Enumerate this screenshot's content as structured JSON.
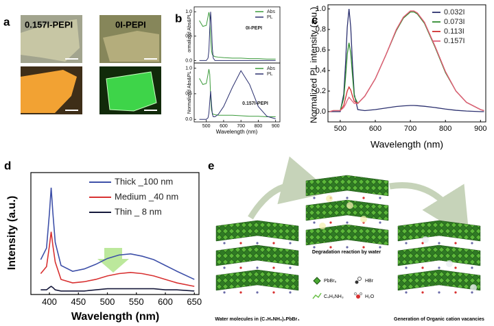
{
  "panel_labels": [
    "a",
    "b",
    "c",
    "d",
    "e"
  ],
  "images": {
    "labels": [
      "0.157I-PEPI",
      "0I-PEPI"
    ]
  },
  "chart_data": [
    {
      "type": "line",
      "ylabel": "ormalized Abs&PL",
      "annotation": "0I-PEPI",
      "x": [
        460,
        480,
        500,
        510,
        515,
        520,
        525,
        530,
        535,
        540,
        550,
        570,
        600,
        650,
        700,
        750,
        800,
        850,
        900
      ],
      "series": [
        {
          "name": "Abs",
          "color": "#3a9a3a",
          "values": [
            0.82,
            0.7,
            0.72,
            0.9,
            0.99,
            0.9,
            0.5,
            0.2,
            0.12,
            0.1,
            0.08,
            0.07,
            0.06,
            0.05,
            0.05,
            0.04,
            0.04,
            0.03,
            0.03
          ]
        },
        {
          "name": "PL",
          "color": "#2a2f6e",
          "values": [
            0,
            0,
            0,
            0.05,
            0.2,
            0.65,
            1.0,
            0.7,
            0.25,
            0.05,
            0,
            0,
            0,
            0,
            0,
            0,
            0,
            0,
            0
          ]
        }
      ],
      "xlim": [
        430,
        925
      ],
      "ylim": [
        -0.05,
        1.1
      ],
      "yticks": [
        {
          "value": 0,
          "label": "0.0"
        },
        0.5,
        {
          "value": 1,
          "label": "1.0"
        }
      ]
    },
    {
      "type": "line",
      "xlabel": "Wavelength (nm)",
      "ylabel": "Normalized Abs&PL",
      "annotation": "0.157I-PEPI",
      "x": [
        460,
        480,
        500,
        510,
        515,
        520,
        525,
        530,
        535,
        540,
        550,
        570,
        600,
        650,
        700,
        750,
        800,
        850,
        900
      ],
      "series": [
        {
          "name": "Abs",
          "color": "#3a9a3a",
          "values": [
            0.8,
            0.68,
            0.7,
            0.88,
            0.98,
            0.88,
            0.45,
            0.18,
            0.12,
            0.1,
            0.09,
            0.08,
            0.08,
            0.08,
            0.07,
            0.06,
            0.06,
            0.05,
            0.05
          ]
        },
        {
          "name": "PL",
          "color": "#2a2f6e",
          "values": [
            0,
            0,
            0,
            0.03,
            0.12,
            0.35,
            0.55,
            0.3,
            0.1,
            0.05,
            0.05,
            0.1,
            0.25,
            0.62,
            0.95,
            0.68,
            0.25,
            0.06,
            0.01
          ]
        }
      ],
      "xlim": [
        430,
        925
      ],
      "ylim": [
        -0.05,
        1.1
      ],
      "xticks": [
        500,
        600,
        700,
        800,
        900
      ],
      "yticks": [
        {
          "value": 0,
          "label": "0.0"
        },
        0.5,
        {
          "value": 1,
          "label": "1.0"
        }
      ]
    },
    {
      "type": "line",
      "xlabel": "Wavelength (nm)",
      "ylabel": "Normalized PL intensity (a.u.)",
      "x": [
        470,
        480,
        500,
        510,
        515,
        520,
        525,
        530,
        535,
        540,
        550,
        570,
        600,
        630,
        660,
        680,
        700,
        710,
        720,
        740,
        770,
        800,
        830,
        860,
        900,
        910
      ],
      "series": [
        {
          "name": "0.032I",
          "color": "#2a2f6e",
          "values": [
            0,
            0,
            0,
            0.17,
            0.46,
            0.82,
            1.0,
            0.82,
            0.46,
            0.17,
            0.02,
            0.01,
            0.02,
            0.035,
            0.05,
            0.056,
            0.06,
            0.06,
            0.058,
            0.052,
            0.04,
            0.025,
            0.013,
            0.006,
            0,
            0
          ]
        },
        {
          "name": "0.073I",
          "color": "#2e8b2e",
          "values": [
            0,
            0.01,
            0.01,
            0.13,
            0.33,
            0.56,
            0.67,
            0.57,
            0.35,
            0.15,
            0.08,
            0.15,
            0.32,
            0.55,
            0.79,
            0.91,
            0.97,
            0.97,
            0.95,
            0.86,
            0.63,
            0.38,
            0.2,
            0.09,
            0.02,
            0.01
          ]
        },
        {
          "name": "0.113I",
          "color": "#d03030",
          "values": [
            0,
            0.01,
            0.01,
            0.06,
            0.13,
            0.2,
            0.24,
            0.21,
            0.15,
            0.1,
            0.08,
            0.15,
            0.32,
            0.55,
            0.8,
            0.92,
            0.98,
            0.98,
            0.96,
            0.87,
            0.64,
            0.39,
            0.2,
            0.09,
            0.02,
            0.01
          ]
        },
        {
          "name": "0.157I",
          "color": "#e0607a",
          "values": [
            0,
            0.01,
            0.01,
            0.04,
            0.07,
            0.11,
            0.14,
            0.12,
            0.1,
            0.08,
            0.08,
            0.15,
            0.32,
            0.55,
            0.8,
            0.92,
            0.98,
            0.98,
            0.96,
            0.87,
            0.64,
            0.39,
            0.2,
            0.09,
            0.02,
            0.01
          ]
        }
      ],
      "xlim": [
        465,
        915
      ],
      "ylim": [
        -0.1,
        1.04
      ],
      "xticks": [
        500,
        600,
        700,
        800,
        900
      ],
      "yticks": [
        {
          "value": 0,
          "label": "0.0"
        },
        0.2,
        0.4,
        0.6,
        0.8,
        {
          "value": 1,
          "label": "1.0"
        }
      ],
      "legend": "upper right"
    },
    {
      "type": "line",
      "xlabel": "Wavelength (nm)",
      "ylabel": "Intensity (a.u.)",
      "x": [
        385,
        395,
        400,
        403,
        406,
        410,
        420,
        440,
        460,
        480,
        500,
        520,
        540,
        560,
        580,
        600,
        620,
        650
      ],
      "series": [
        {
          "name": "Thick _100 nm",
          "color": "#3d4fa8",
          "values": [
            0.3,
            0.4,
            0.7,
            0.92,
            0.7,
            0.45,
            0.25,
            0.2,
            0.22,
            0.26,
            0.31,
            0.34,
            0.35,
            0.33,
            0.3,
            0.25,
            0.2,
            0.13
          ]
        },
        {
          "name": "Medium _40 nm",
          "color": "#d83030",
          "values": [
            0.18,
            0.24,
            0.42,
            0.54,
            0.42,
            0.28,
            0.13,
            0.1,
            0.11,
            0.13,
            0.16,
            0.18,
            0.19,
            0.18,
            0.16,
            0.13,
            0.1,
            0.07
          ]
        },
        {
          "name": "Thin _ 8 nm",
          "color": "#15183a",
          "values": [
            0.04,
            0.04,
            0.06,
            0.07,
            0.06,
            0.04,
            0.03,
            0.03,
            0.03,
            0.04,
            0.05,
            0.05,
            0.05,
            0.05,
            0.05,
            0.04,
            0.04,
            0.03
          ]
        }
      ],
      "xlim": [
        368,
        658
      ],
      "ylim": [
        0,
        1.05
      ],
      "xticks": [
        400,
        450,
        500,
        550,
        600,
        650
      ],
      "legend": "upper right"
    }
  ],
  "diagram": {
    "center_caption": "Degradation reaction by water",
    "left_caption": "Water molecules in (C₄H₉NH₃)₂PbBr₄",
    "right_caption": "Generation of Organic cation vacancies",
    "legend": [
      "PbBr₆",
      "HBr",
      "C₄H₉NH₃",
      "H₂O"
    ]
  }
}
